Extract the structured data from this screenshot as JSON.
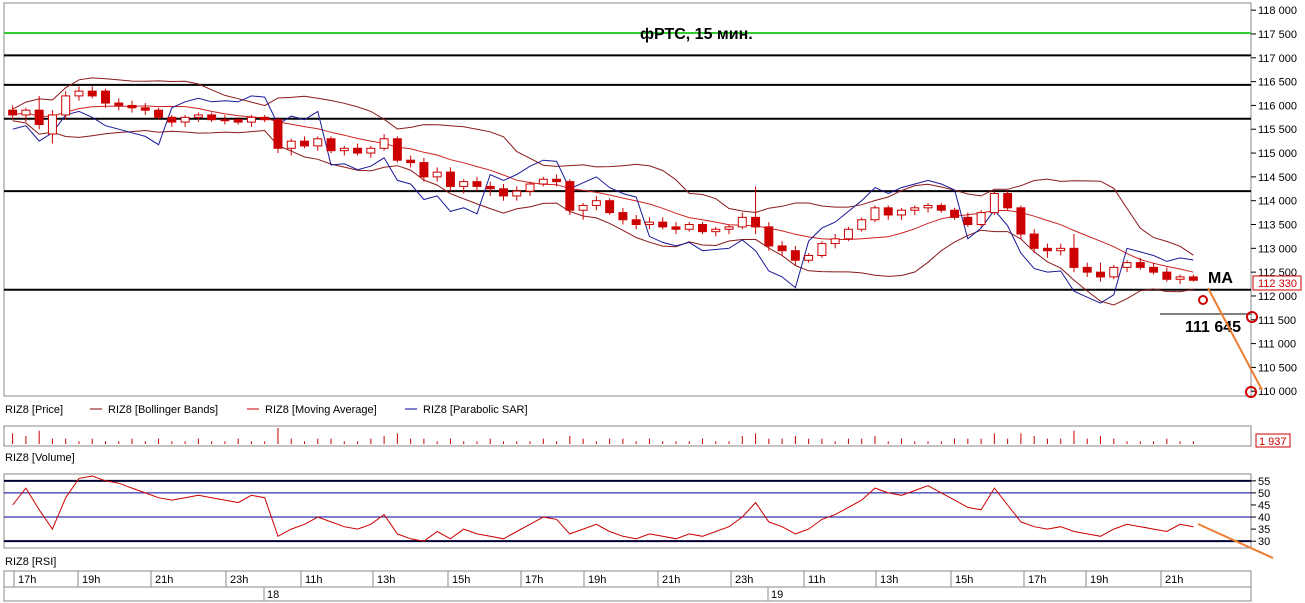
{
  "chart_data": {
    "type": "candlestick",
    "title": "фРТС, 15 мин.",
    "price_axis": {
      "ticks": [
        "118 000",
        "117 500",
        "117 000",
        "116 500",
        "116 000",
        "115 500",
        "115 000",
        "114 500",
        "114 000",
        "113 500",
        "113 000",
        "112 500",
        "112 000",
        "111 500",
        "111 000",
        "110 500",
        "110 000"
      ],
      "ylim": [
        109900,
        118150
      ]
    },
    "last_price_label": "112 330",
    "legend": [
      "RIZ8 [Price]",
      "RIZ8 [Bollinger Bands]",
      "RIZ8 [Moving Average]",
      "RIZ8 [Parabolic SAR]"
    ],
    "volume_label": "RIZ8 [Volume]",
    "volume_last": "1 937",
    "rsi_label": "RIZ8 [RSI]",
    "rsi_axis": {
      "ticks": [
        "55",
        "50",
        "45",
        "40",
        "35",
        "30"
      ],
      "ylim": [
        28,
        57
      ]
    },
    "time_labels": [
      "17h",
      "19h",
      "21h",
      "23h",
      "11h",
      "13h",
      "15h",
      "17h",
      "19h",
      "21h",
      "23h",
      "11h",
      "13h",
      "15h",
      "17h",
      "19h",
      "21h"
    ],
    "day_labels": [
      "18",
      "19"
    ],
    "annotations": {
      "ma": "MA",
      "target": "111 645"
    },
    "horizontal_levels": [
      {
        "value": 117520,
        "color": "#33cc33"
      },
      {
        "value": 117050,
        "color": "#000000"
      },
      {
        "value": 116430,
        "color": "#000000"
      },
      {
        "value": 115720,
        "color": "#000000"
      },
      {
        "value": 114200,
        "color": "#000000"
      },
      {
        "value": 112130,
        "color": "#000000"
      }
    ],
    "ohlc": [
      [
        115900,
        116000,
        115700,
        115800
      ],
      [
        115800,
        115950,
        115650,
        115900
      ],
      [
        115900,
        116200,
        115500,
        115600
      ],
      [
        115400,
        115900,
        115200,
        115800
      ],
      [
        115800,
        116300,
        115700,
        116200
      ],
      [
        116200,
        116400,
        116100,
        116300
      ],
      [
        116300,
        116400,
        116150,
        116200
      ],
      [
        116300,
        116350,
        115950,
        116050
      ],
      [
        116050,
        116150,
        115900,
        116000
      ],
      [
        116000,
        116100,
        115850,
        115950
      ],
      [
        115950,
        116050,
        115800,
        115900
      ],
      [
        115900,
        115950,
        115700,
        115750
      ],
      [
        115750,
        115800,
        115550,
        115650
      ],
      [
        115650,
        115800,
        115550,
        115750
      ],
      [
        115750,
        115850,
        115650,
        115800
      ],
      [
        115800,
        115850,
        115650,
        115700
      ],
      [
        115700,
        115800,
        115600,
        115700
      ],
      [
        115700,
        115750,
        115600,
        115650
      ],
      [
        115650,
        115800,
        115550,
        115750
      ],
      [
        115750,
        115800,
        115650,
        115700
      ],
      [
        115700,
        115750,
        115000,
        115100
      ],
      [
        115100,
        115300,
        114950,
        115250
      ],
      [
        115250,
        115350,
        115100,
        115150
      ],
      [
        115150,
        115350,
        115050,
        115300
      ],
      [
        115300,
        115350,
        115000,
        115050
      ],
      [
        115050,
        115150,
        114950,
        115100
      ],
      [
        115100,
        115200,
        114950,
        115000
      ],
      [
        115000,
        115150,
        114900,
        115100
      ],
      [
        115100,
        115400,
        115050,
        115300
      ],
      [
        115300,
        115350,
        114800,
        114850
      ],
      [
        114850,
        114950,
        114700,
        114800
      ],
      [
        114800,
        114900,
        114400,
        114500
      ],
      [
        114500,
        114700,
        114400,
        114600
      ],
      [
        114600,
        114700,
        114200,
        114300
      ],
      [
        114300,
        114450,
        114150,
        114400
      ],
      [
        114400,
        114500,
        114200,
        114300
      ],
      [
        114300,
        114400,
        114100,
        114250
      ],
      [
        114250,
        114350,
        114000,
        114100
      ],
      [
        114100,
        114300,
        114000,
        114200
      ],
      [
        114200,
        114400,
        114100,
        114350
      ],
      [
        114350,
        114500,
        114300,
        114450
      ],
      [
        114450,
        114550,
        114300,
        114400
      ],
      [
        114400,
        114450,
        113700,
        113800
      ],
      [
        113800,
        113950,
        113600,
        113900
      ],
      [
        113900,
        114100,
        113800,
        114000
      ],
      [
        114000,
        114050,
        113700,
        113750
      ],
      [
        113750,
        113850,
        113500,
        113600
      ],
      [
        113600,
        113700,
        113400,
        113500
      ],
      [
        113500,
        113650,
        113400,
        113550
      ],
      [
        113550,
        113650,
        113400,
        113450
      ],
      [
        113450,
        113550,
        113300,
        113400
      ],
      [
        113400,
        113550,
        113350,
        113500
      ],
      [
        113500,
        113550,
        113300,
        113350
      ],
      [
        113350,
        113450,
        113250,
        113400
      ],
      [
        113400,
        113500,
        113300,
        113450
      ],
      [
        113450,
        113750,
        113400,
        113650
      ],
      [
        113650,
        114300,
        113300,
        113450
      ],
      [
        113450,
        113550,
        112950,
        113050
      ],
      [
        113050,
        113150,
        112850,
        112950
      ],
      [
        112950,
        113050,
        112650,
        112750
      ],
      [
        112750,
        112900,
        112700,
        112850
      ],
      [
        112850,
        113150,
        112800,
        113100
      ],
      [
        113100,
        113300,
        113000,
        113200
      ],
      [
        113200,
        113450,
        113150,
        113400
      ],
      [
        113400,
        113650,
        113350,
        113600
      ],
      [
        113600,
        113900,
        113550,
        113850
      ],
      [
        113850,
        113900,
        113600,
        113700
      ],
      [
        113700,
        113850,
        113600,
        113800
      ],
      [
        113800,
        113900,
        113700,
        113850
      ],
      [
        113850,
        113950,
        113750,
        113900
      ],
      [
        113900,
        113950,
        113750,
        113800
      ],
      [
        113800,
        113850,
        113600,
        113650
      ],
      [
        113650,
        113750,
        113450,
        113500
      ],
      [
        113500,
        113800,
        113450,
        113750
      ],
      [
        113750,
        114200,
        113700,
        114150
      ],
      [
        114150,
        114200,
        113800,
        113850
      ],
      [
        113850,
        113900,
        113200,
        113300
      ],
      [
        113300,
        113400,
        112900,
        113000
      ],
      [
        113000,
        113100,
        112800,
        112950
      ],
      [
        112950,
        113100,
        112850,
        113000
      ],
      [
        113000,
        113300,
        112500,
        112600
      ],
      [
        112600,
        112700,
        112400,
        112500
      ],
      [
        112500,
        112700,
        112300,
        112400
      ],
      [
        112400,
        112650,
        112350,
        112600
      ],
      [
        112600,
        112750,
        112500,
        112700
      ],
      [
        112700,
        112800,
        112550,
        112600
      ],
      [
        112600,
        112700,
        112450,
        112500
      ],
      [
        112500,
        112600,
        112300,
        112350
      ],
      [
        112350,
        112450,
        112250,
        112400
      ],
      [
        112400,
        112450,
        112300,
        112330
      ]
    ],
    "volume": [
      4,
      3,
      5,
      2,
      2,
      1,
      2,
      1,
      1,
      2,
      1,
      2,
      1,
      1,
      2,
      1,
      1,
      2,
      1,
      1,
      6,
      2,
      1,
      2,
      2,
      1,
      1,
      2,
      3,
      4,
      2,
      2,
      1,
      2,
      1,
      1,
      2,
      1,
      1,
      1,
      2,
      1,
      3,
      2,
      1,
      2,
      2,
      1,
      2,
      1,
      1,
      1,
      2,
      1,
      1,
      3,
      4,
      2,
      2,
      3,
      2,
      2,
      1,
      2,
      2,
      3,
      1,
      2,
      1,
      1,
      1,
      2,
      2,
      2,
      4,
      2,
      4,
      3,
      2,
      2,
      5,
      2,
      3,
      2,
      1,
      1,
      1,
      2,
      1,
      1
    ],
    "rsi": [
      45,
      52,
      43,
      35,
      48,
      56,
      57,
      55,
      54,
      52,
      50,
      48,
      47,
      48,
      49,
      48,
      47,
      46,
      49,
      48,
      32,
      35,
      37,
      40,
      38,
      36,
      35,
      37,
      41,
      33,
      31,
      30,
      34,
      31,
      35,
      33,
      32,
      31,
      34,
      37,
      40,
      39,
      33,
      35,
      37,
      34,
      32,
      31,
      33,
      32,
      31,
      33,
      32,
      34,
      36,
      40,
      46,
      38,
      36,
      33,
      35,
      39,
      41,
      44,
      47,
      52,
      50,
      49,
      51,
      53,
      50,
      47,
      44,
      43,
      52,
      45,
      38,
      36,
      35,
      36,
      34,
      33,
      32,
      35,
      37,
      36,
      35,
      34,
      37,
      36
    ]
  }
}
